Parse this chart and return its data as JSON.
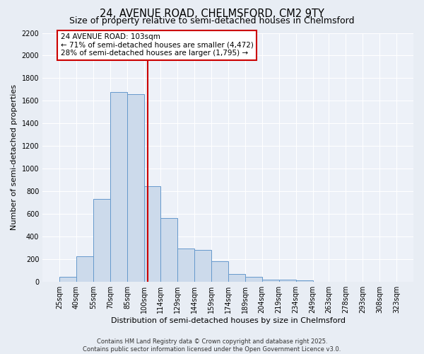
{
  "title": "24, AVENUE ROAD, CHELMSFORD, CM2 9TY",
  "subtitle": "Size of property relative to semi-detached houses in Chelmsford",
  "xlabel": "Distribution of semi-detached houses by size in Chelmsford",
  "ylabel": "Number of semi-detached properties",
  "bin_edges": [
    25,
    40,
    55,
    70,
    85,
    100,
    114,
    129,
    144,
    159,
    174,
    189,
    204,
    219,
    234,
    249,
    263,
    278,
    293,
    308,
    323
  ],
  "bar_heights": [
    40,
    225,
    730,
    1675,
    1660,
    845,
    560,
    295,
    280,
    180,
    65,
    40,
    20,
    15,
    8,
    0,
    0,
    0,
    0,
    0
  ],
  "bar_color": "#ccdaeb",
  "bar_edge_color": "#6699cc",
  "property_size": 103,
  "property_line_color": "#cc0000",
  "annotation_text": "24 AVENUE ROAD: 103sqm\n← 71% of semi-detached houses are smaller (4,472)\n28% of semi-detached houses are larger (1,795) →",
  "annotation_box_color": "#ffffff",
  "annotation_box_edge_color": "#cc0000",
  "ylim": [
    0,
    2200
  ],
  "yticks": [
    0,
    200,
    400,
    600,
    800,
    1000,
    1200,
    1400,
    1600,
    1800,
    2000,
    2200
  ],
  "background_color": "#e8edf4",
  "plot_background_color": "#edf1f8",
  "grid_color": "#ffffff",
  "footer_line1": "Contains HM Land Registry data © Crown copyright and database right 2025.",
  "footer_line2": "Contains public sector information licensed under the Open Government Licence v3.0.",
  "title_fontsize": 10.5,
  "subtitle_fontsize": 9,
  "tick_label_fontsize": 7,
  "axis_label_fontsize": 8,
  "footer_fontsize": 6
}
